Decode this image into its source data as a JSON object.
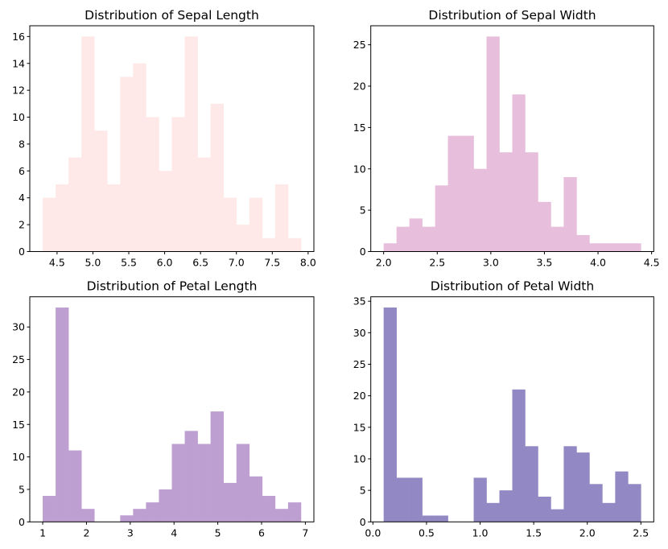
{
  "figure": {
    "subplots": 4
  },
  "chart_data": [
    {
      "type": "bar",
      "subtype": "histogram",
      "title": "Distribution of Sepal Length",
      "xlabel": "",
      "ylabel": "",
      "color": "#ffe8e8",
      "bin_edges_start": 4.3,
      "bin_edges_end": 7.9,
      "bins": 20,
      "values": [
        4,
        5,
        7,
        16,
        9,
        5,
        13,
        14,
        10,
        6,
        10,
        16,
        7,
        11,
        4,
        2,
        4,
        1,
        5,
        1
      ],
      "xlim": [
        4.12,
        8.08
      ],
      "ylim": [
        0,
        16.8
      ],
      "xticks": [
        4.5,
        5.0,
        5.5,
        6.0,
        6.5,
        7.0,
        7.5,
        8.0
      ],
      "xtick_labels": [
        "4.5",
        "5.0",
        "5.5",
        "6.0",
        "6.5",
        "7.0",
        "7.5",
        "8.0"
      ],
      "yticks": [
        0,
        2,
        4,
        6,
        8,
        10,
        12,
        14,
        16
      ],
      "ytick_labels": [
        "0",
        "2",
        "4",
        "6",
        "8",
        "10",
        "12",
        "14",
        "16"
      ],
      "grid": false
    },
    {
      "type": "bar",
      "subtype": "histogram",
      "title": "Distribution of Sepal Width",
      "xlabel": "",
      "ylabel": "",
      "color": "#e7bfdc",
      "bin_edges_start": 2.0,
      "bin_edges_end": 4.4,
      "bins": 20,
      "values": [
        1,
        3,
        4,
        3,
        8,
        14,
        14,
        10,
        26,
        12,
        19,
        12,
        6,
        3,
        9,
        2,
        1,
        1,
        1,
        1
      ],
      "xlim": [
        1.88,
        4.52
      ],
      "ylim": [
        0,
        27.3
      ],
      "xticks": [
        2.0,
        2.5,
        3.0,
        3.5,
        4.0,
        4.5
      ],
      "xtick_labels": [
        "2.0",
        "2.5",
        "3.0",
        "3.5",
        "4.0",
        "4.5"
      ],
      "yticks": [
        0,
        5,
        10,
        15,
        20,
        25
      ],
      "ytick_labels": [
        "0",
        "5",
        "10",
        "15",
        "20",
        "25"
      ],
      "grid": false
    },
    {
      "type": "bar",
      "subtype": "histogram",
      "title": "Distribution of Petal Length",
      "xlabel": "",
      "ylabel": "",
      "color": "#bd9fd1",
      "bin_edges_start": 1.0,
      "bin_edges_end": 6.9,
      "bins": 20,
      "values": [
        4,
        33,
        11,
        2,
        0,
        0,
        1,
        2,
        3,
        5,
        12,
        14,
        12,
        17,
        6,
        12,
        7,
        4,
        2,
        3
      ],
      "xlim": [
        0.705,
        7.195
      ],
      "ylim": [
        0,
        34.65
      ],
      "xticks": [
        1,
        2,
        3,
        4,
        5,
        6,
        7
      ],
      "xtick_labels": [
        "1",
        "2",
        "3",
        "4",
        "5",
        "6",
        "7"
      ],
      "yticks": [
        0,
        5,
        10,
        15,
        20,
        25,
        30
      ],
      "ytick_labels": [
        "0",
        "5",
        "10",
        "15",
        "20",
        "25",
        "30"
      ],
      "grid": false
    },
    {
      "type": "bar",
      "subtype": "histogram",
      "title": "Distribution of Petal Width",
      "xlabel": "",
      "ylabel": "",
      "color": "#9289c4",
      "bin_edges_start": 0.1,
      "bin_edges_end": 2.5,
      "bins": 20,
      "values": [
        34,
        7,
        7,
        1,
        1,
        0,
        0,
        7,
        3,
        5,
        21,
        12,
        4,
        2,
        12,
        11,
        6,
        3,
        8,
        6
      ],
      "xlim": [
        -0.02,
        2.62
      ],
      "ylim": [
        0,
        35.7
      ],
      "xticks": [
        0.0,
        0.5,
        1.0,
        1.5,
        2.0,
        2.5
      ],
      "xtick_labels": [
        "0.0",
        "0.5",
        "1.0",
        "1.5",
        "2.0",
        "2.5"
      ],
      "yticks": [
        0,
        5,
        10,
        15,
        20,
        25,
        30,
        35
      ],
      "ytick_labels": [
        "0",
        "5",
        "10",
        "15",
        "20",
        "25",
        "30",
        "35"
      ],
      "grid": false
    }
  ]
}
